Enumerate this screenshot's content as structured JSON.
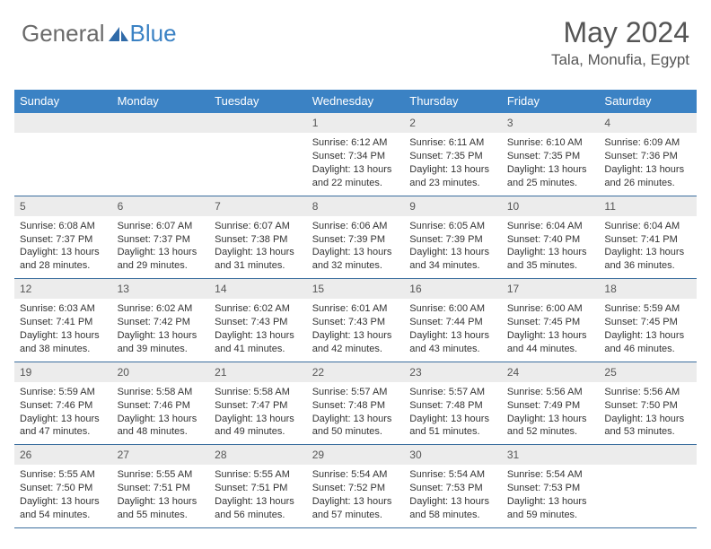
{
  "brand": {
    "part1": "General",
    "part2": "Blue"
  },
  "colors": {
    "header_bg": "#3b82c4",
    "row_border": "#3b6e9e",
    "daynum_bg": "#ececec",
    "text": "#333333",
    "muted": "#555555",
    "white": "#ffffff"
  },
  "title": "May 2024",
  "location": "Tala, Monufia, Egypt",
  "daysOfWeek": [
    "Sunday",
    "Monday",
    "Tuesday",
    "Wednesday",
    "Thursday",
    "Friday",
    "Saturday"
  ],
  "weeks": [
    [
      {
        "n": "",
        "empty": true
      },
      {
        "n": "",
        "empty": true
      },
      {
        "n": "",
        "empty": true
      },
      {
        "n": "1",
        "sunrise": "6:12 AM",
        "sunset": "7:34 PM",
        "daylight": "13 hours and 22 minutes."
      },
      {
        "n": "2",
        "sunrise": "6:11 AM",
        "sunset": "7:35 PM",
        "daylight": "13 hours and 23 minutes."
      },
      {
        "n": "3",
        "sunrise": "6:10 AM",
        "sunset": "7:35 PM",
        "daylight": "13 hours and 25 minutes."
      },
      {
        "n": "4",
        "sunrise": "6:09 AM",
        "sunset": "7:36 PM",
        "daylight": "13 hours and 26 minutes."
      }
    ],
    [
      {
        "n": "5",
        "sunrise": "6:08 AM",
        "sunset": "7:37 PM",
        "daylight": "13 hours and 28 minutes."
      },
      {
        "n": "6",
        "sunrise": "6:07 AM",
        "sunset": "7:37 PM",
        "daylight": "13 hours and 29 minutes."
      },
      {
        "n": "7",
        "sunrise": "6:07 AM",
        "sunset": "7:38 PM",
        "daylight": "13 hours and 31 minutes."
      },
      {
        "n": "8",
        "sunrise": "6:06 AM",
        "sunset": "7:39 PM",
        "daylight": "13 hours and 32 minutes."
      },
      {
        "n": "9",
        "sunrise": "6:05 AM",
        "sunset": "7:39 PM",
        "daylight": "13 hours and 34 minutes."
      },
      {
        "n": "10",
        "sunrise": "6:04 AM",
        "sunset": "7:40 PM",
        "daylight": "13 hours and 35 minutes."
      },
      {
        "n": "11",
        "sunrise": "6:04 AM",
        "sunset": "7:41 PM",
        "daylight": "13 hours and 36 minutes."
      }
    ],
    [
      {
        "n": "12",
        "sunrise": "6:03 AM",
        "sunset": "7:41 PM",
        "daylight": "13 hours and 38 minutes."
      },
      {
        "n": "13",
        "sunrise": "6:02 AM",
        "sunset": "7:42 PM",
        "daylight": "13 hours and 39 minutes."
      },
      {
        "n": "14",
        "sunrise": "6:02 AM",
        "sunset": "7:43 PM",
        "daylight": "13 hours and 41 minutes."
      },
      {
        "n": "15",
        "sunrise": "6:01 AM",
        "sunset": "7:43 PM",
        "daylight": "13 hours and 42 minutes."
      },
      {
        "n": "16",
        "sunrise": "6:00 AM",
        "sunset": "7:44 PM",
        "daylight": "13 hours and 43 minutes."
      },
      {
        "n": "17",
        "sunrise": "6:00 AM",
        "sunset": "7:45 PM",
        "daylight": "13 hours and 44 minutes."
      },
      {
        "n": "18",
        "sunrise": "5:59 AM",
        "sunset": "7:45 PM",
        "daylight": "13 hours and 46 minutes."
      }
    ],
    [
      {
        "n": "19",
        "sunrise": "5:59 AM",
        "sunset": "7:46 PM",
        "daylight": "13 hours and 47 minutes."
      },
      {
        "n": "20",
        "sunrise": "5:58 AM",
        "sunset": "7:46 PM",
        "daylight": "13 hours and 48 minutes."
      },
      {
        "n": "21",
        "sunrise": "5:58 AM",
        "sunset": "7:47 PM",
        "daylight": "13 hours and 49 minutes."
      },
      {
        "n": "22",
        "sunrise": "5:57 AM",
        "sunset": "7:48 PM",
        "daylight": "13 hours and 50 minutes."
      },
      {
        "n": "23",
        "sunrise": "5:57 AM",
        "sunset": "7:48 PM",
        "daylight": "13 hours and 51 minutes."
      },
      {
        "n": "24",
        "sunrise": "5:56 AM",
        "sunset": "7:49 PM",
        "daylight": "13 hours and 52 minutes."
      },
      {
        "n": "25",
        "sunrise": "5:56 AM",
        "sunset": "7:50 PM",
        "daylight": "13 hours and 53 minutes."
      }
    ],
    [
      {
        "n": "26",
        "sunrise": "5:55 AM",
        "sunset": "7:50 PM",
        "daylight": "13 hours and 54 minutes."
      },
      {
        "n": "27",
        "sunrise": "5:55 AM",
        "sunset": "7:51 PM",
        "daylight": "13 hours and 55 minutes."
      },
      {
        "n": "28",
        "sunrise": "5:55 AM",
        "sunset": "7:51 PM",
        "daylight": "13 hours and 56 minutes."
      },
      {
        "n": "29",
        "sunrise": "5:54 AM",
        "sunset": "7:52 PM",
        "daylight": "13 hours and 57 minutes."
      },
      {
        "n": "30",
        "sunrise": "5:54 AM",
        "sunset": "7:53 PM",
        "daylight": "13 hours and 58 minutes."
      },
      {
        "n": "31",
        "sunrise": "5:54 AM",
        "sunset": "7:53 PM",
        "daylight": "13 hours and 59 minutes."
      },
      {
        "n": "",
        "empty": true
      }
    ]
  ],
  "labels": {
    "sunrise": "Sunrise:",
    "sunset": "Sunset:",
    "daylight": "Daylight:"
  }
}
